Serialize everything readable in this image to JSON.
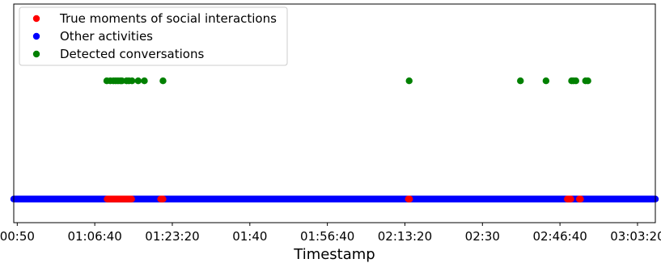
{
  "chart_data": {
    "type": "scatter",
    "xlabel": "Timestamp",
    "x_ticks": [
      {
        "seconds": 3000,
        "label": "00:50"
      },
      {
        "seconds": 4000,
        "label": "01:06:40"
      },
      {
        "seconds": 5000,
        "label": "01:23:20"
      },
      {
        "seconds": 6000,
        "label": "01:40"
      },
      {
        "seconds": 7000,
        "label": "01:56:40"
      },
      {
        "seconds": 8000,
        "label": "02:13:20"
      },
      {
        "seconds": 9000,
        "label": "02:30"
      },
      {
        "seconds": 10000,
        "label": "02:46:40"
      },
      {
        "seconds": 11000,
        "label": "03:03:20"
      }
    ],
    "xlim": [
      2955,
      11230
    ],
    "ylim": [
      -0.2,
      1.65
    ],
    "y_ticks_visible": false,
    "grid": false,
    "legend_position": "top-left",
    "series": [
      {
        "name": "Other activities",
        "color": "#0000ff",
        "y": 0,
        "continuous_ranges": [
          [
            2955,
            11230
          ]
        ]
      },
      {
        "name": "True moments of social interactions",
        "color": "#ff0000",
        "y": 0,
        "ranges": [
          [
            4160,
            4475
          ],
          [
            4850,
            4880
          ],
          [
            8045,
            8060
          ],
          [
            10095,
            10140
          ],
          [
            10250,
            10265
          ]
        ]
      },
      {
        "name": "Detected conversations",
        "color": "#008000",
        "y": 1,
        "x": [
          4155,
          4200,
          4240,
          4270,
          4300,
          4330,
          4350,
          4410,
          4440,
          4480,
          4560,
          4640,
          4880,
          8055,
          9490,
          9820,
          10150,
          10175,
          10205,
          10330,
          10360
        ]
      }
    ],
    "legend": [
      {
        "label": "True moments of social interactions",
        "color": "#ff0000"
      },
      {
        "label": "Other activities",
        "color": "#0000ff"
      },
      {
        "label": "Detected conversations",
        "color": "#008000"
      }
    ]
  }
}
